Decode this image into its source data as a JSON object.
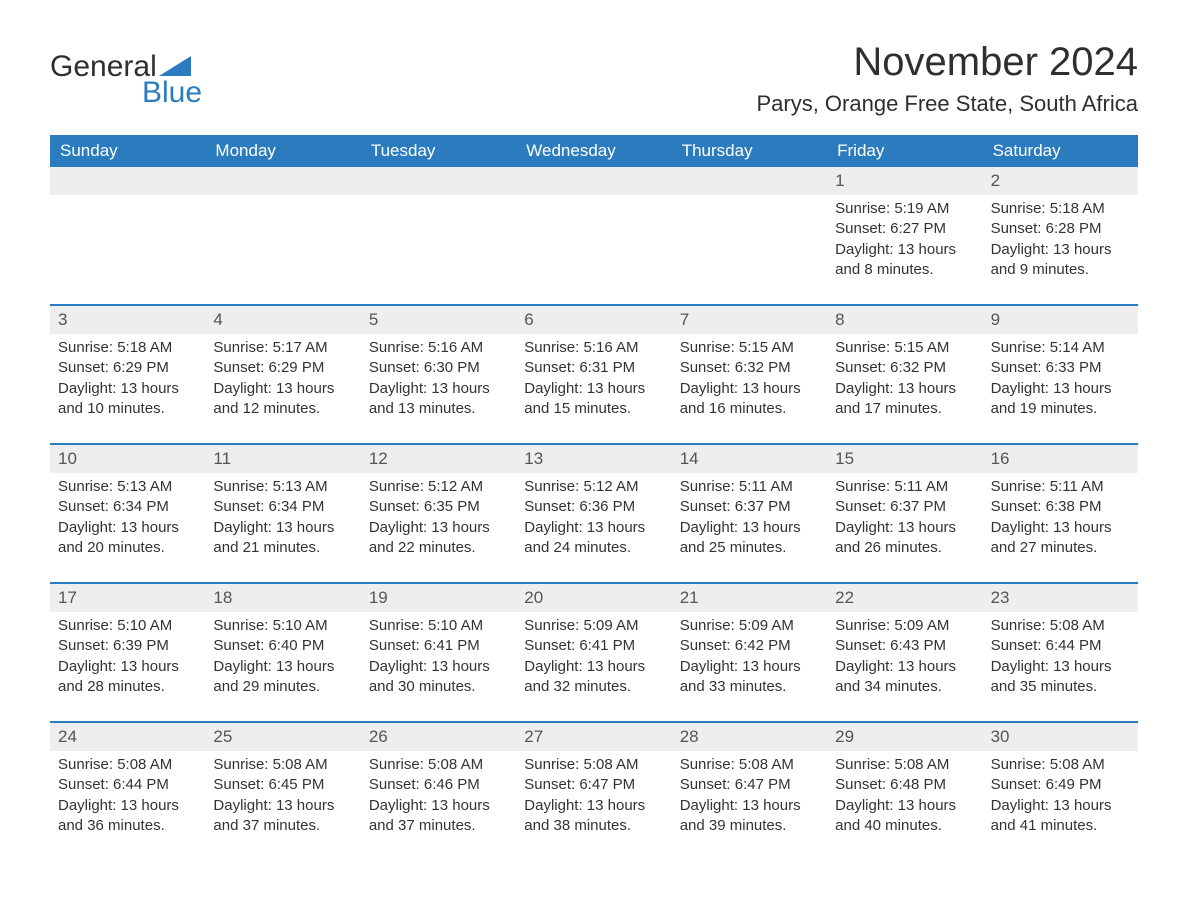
{
  "logo": {
    "text1": "General",
    "text2": "Blue",
    "accent_color": "#2b7bbf"
  },
  "header": {
    "month_title": "November 2024",
    "location": "Parys, Orange Free State, South Africa"
  },
  "colors": {
    "header_bg": "#2b7bbf",
    "header_text": "#ffffff",
    "daynum_bg": "#eeeeee",
    "border": "#2b7bbf",
    "body_text": "#333333",
    "page_bg": "#ffffff"
  },
  "font": {
    "family": "Arial",
    "title_size_pt": 30,
    "location_size_pt": 17,
    "header_size_pt": 13,
    "body_size_pt": 11
  },
  "dayNames": [
    "Sunday",
    "Monday",
    "Tuesday",
    "Wednesday",
    "Thursday",
    "Friday",
    "Saturday"
  ],
  "label_sunrise": "Sunrise: ",
  "label_sunset": "Sunset: ",
  "label_daylight": "Daylight: ",
  "weeks": [
    [
      {
        "empty": true
      },
      {
        "empty": true
      },
      {
        "empty": true
      },
      {
        "empty": true
      },
      {
        "empty": true
      },
      {
        "d": "1",
        "sr": "5:19 AM",
        "ss": "6:27 PM",
        "dl": "13 hours and 8 minutes."
      },
      {
        "d": "2",
        "sr": "5:18 AM",
        "ss": "6:28 PM",
        "dl": "13 hours and 9 minutes."
      }
    ],
    [
      {
        "d": "3",
        "sr": "5:18 AM",
        "ss": "6:29 PM",
        "dl": "13 hours and 10 minutes."
      },
      {
        "d": "4",
        "sr": "5:17 AM",
        "ss": "6:29 PM",
        "dl": "13 hours and 12 minutes."
      },
      {
        "d": "5",
        "sr": "5:16 AM",
        "ss": "6:30 PM",
        "dl": "13 hours and 13 minutes."
      },
      {
        "d": "6",
        "sr": "5:16 AM",
        "ss": "6:31 PM",
        "dl": "13 hours and 15 minutes."
      },
      {
        "d": "7",
        "sr": "5:15 AM",
        "ss": "6:32 PM",
        "dl": "13 hours and 16 minutes."
      },
      {
        "d": "8",
        "sr": "5:15 AM",
        "ss": "6:32 PM",
        "dl": "13 hours and 17 minutes."
      },
      {
        "d": "9",
        "sr": "5:14 AM",
        "ss": "6:33 PM",
        "dl": "13 hours and 19 minutes."
      }
    ],
    [
      {
        "d": "10",
        "sr": "5:13 AM",
        "ss": "6:34 PM",
        "dl": "13 hours and 20 minutes."
      },
      {
        "d": "11",
        "sr": "5:13 AM",
        "ss": "6:34 PM",
        "dl": "13 hours and 21 minutes."
      },
      {
        "d": "12",
        "sr": "5:12 AM",
        "ss": "6:35 PM",
        "dl": "13 hours and 22 minutes."
      },
      {
        "d": "13",
        "sr": "5:12 AM",
        "ss": "6:36 PM",
        "dl": "13 hours and 24 minutes."
      },
      {
        "d": "14",
        "sr": "5:11 AM",
        "ss": "6:37 PM",
        "dl": "13 hours and 25 minutes."
      },
      {
        "d": "15",
        "sr": "5:11 AM",
        "ss": "6:37 PM",
        "dl": "13 hours and 26 minutes."
      },
      {
        "d": "16",
        "sr": "5:11 AM",
        "ss": "6:38 PM",
        "dl": "13 hours and 27 minutes."
      }
    ],
    [
      {
        "d": "17",
        "sr": "5:10 AM",
        "ss": "6:39 PM",
        "dl": "13 hours and 28 minutes."
      },
      {
        "d": "18",
        "sr": "5:10 AM",
        "ss": "6:40 PM",
        "dl": "13 hours and 29 minutes."
      },
      {
        "d": "19",
        "sr": "5:10 AM",
        "ss": "6:41 PM",
        "dl": "13 hours and 30 minutes."
      },
      {
        "d": "20",
        "sr": "5:09 AM",
        "ss": "6:41 PM",
        "dl": "13 hours and 32 minutes."
      },
      {
        "d": "21",
        "sr": "5:09 AM",
        "ss": "6:42 PM",
        "dl": "13 hours and 33 minutes."
      },
      {
        "d": "22",
        "sr": "5:09 AM",
        "ss": "6:43 PM",
        "dl": "13 hours and 34 minutes."
      },
      {
        "d": "23",
        "sr": "5:08 AM",
        "ss": "6:44 PM",
        "dl": "13 hours and 35 minutes."
      }
    ],
    [
      {
        "d": "24",
        "sr": "5:08 AM",
        "ss": "6:44 PM",
        "dl": "13 hours and 36 minutes."
      },
      {
        "d": "25",
        "sr": "5:08 AM",
        "ss": "6:45 PM",
        "dl": "13 hours and 37 minutes."
      },
      {
        "d": "26",
        "sr": "5:08 AM",
        "ss": "6:46 PM",
        "dl": "13 hours and 37 minutes."
      },
      {
        "d": "27",
        "sr": "5:08 AM",
        "ss": "6:47 PM",
        "dl": "13 hours and 38 minutes."
      },
      {
        "d": "28",
        "sr": "5:08 AM",
        "ss": "6:47 PM",
        "dl": "13 hours and 39 minutes."
      },
      {
        "d": "29",
        "sr": "5:08 AM",
        "ss": "6:48 PM",
        "dl": "13 hours and 40 minutes."
      },
      {
        "d": "30",
        "sr": "5:08 AM",
        "ss": "6:49 PM",
        "dl": "13 hours and 41 minutes."
      }
    ]
  ]
}
